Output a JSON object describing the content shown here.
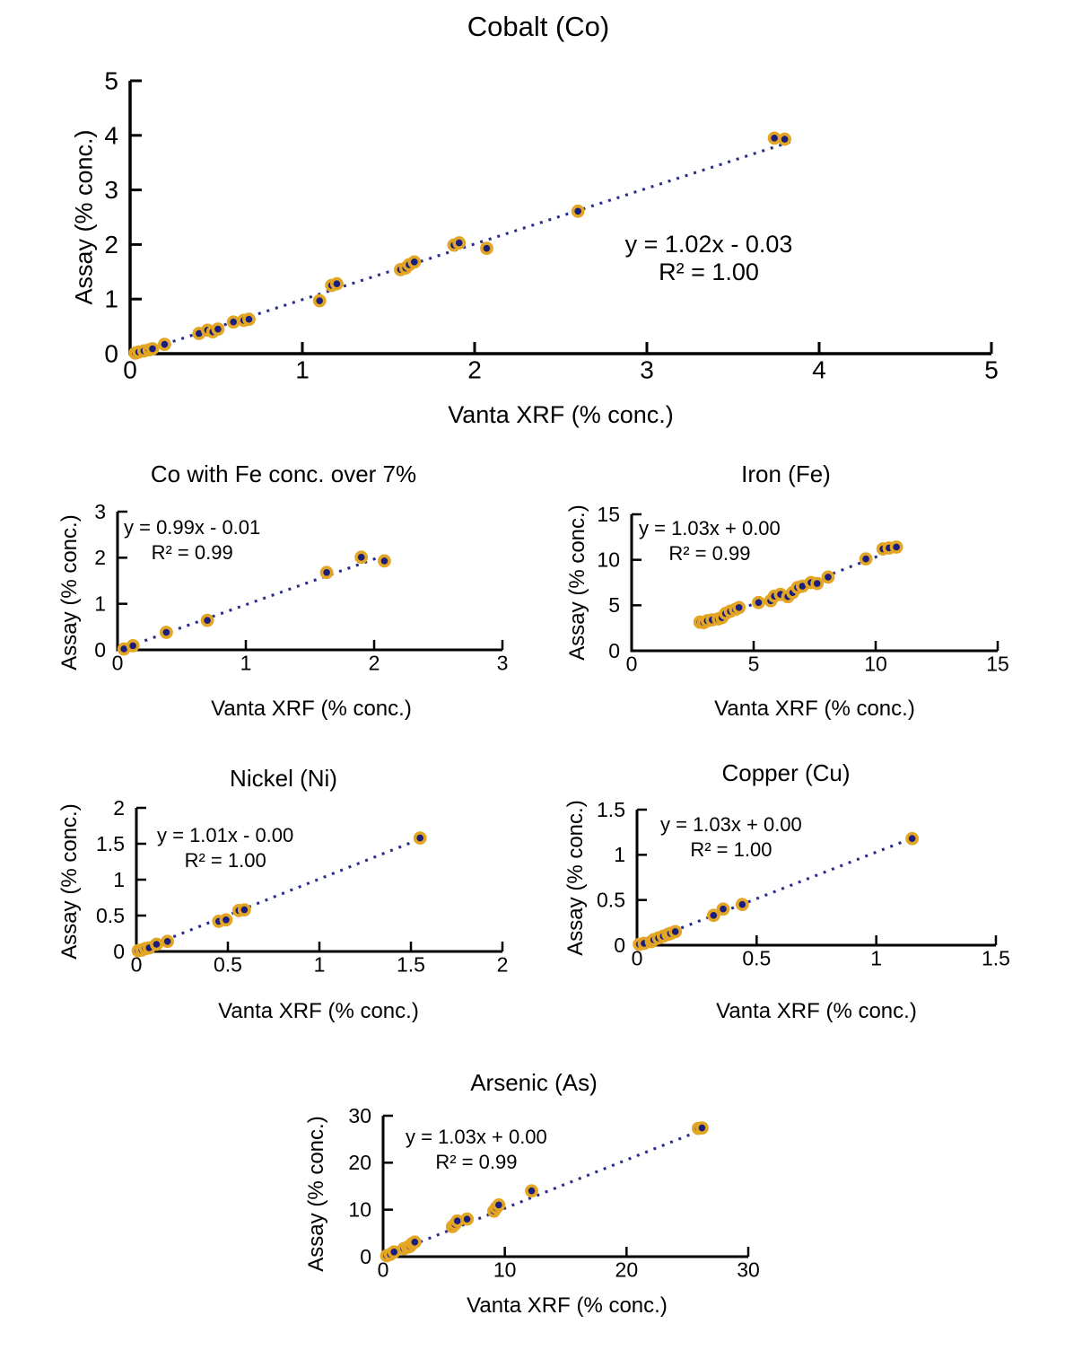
{
  "figure_background": "#ffffff",
  "colors": {
    "marker_fill": "#1b1e7c",
    "marker_ring": "#e2a524",
    "trendline": "#2b2d8c",
    "axis": "#000000",
    "text": "#000000"
  },
  "chart_data": [
    {
      "type": "scatter",
      "title": "Cobalt (Co)",
      "equation": "y = 1.02x - 0.03",
      "r_squared": "R² = 1.00",
      "x_label": "Vanta XRF (% conc.)",
      "y_label": "Assay (% conc.)",
      "x_ticks": [
        "0",
        "1",
        "2",
        "3",
        "4",
        "5"
      ],
      "y_ticks": [
        "0",
        "1",
        "2",
        "3",
        "4",
        "5"
      ],
      "x_max": 5,
      "y_max": 5,
      "fit": {
        "m": 1.02,
        "b": -0.03
      },
      "trend_x": [
        0.05,
        3.86
      ],
      "points": [
        [
          0.03,
          0.01
        ],
        [
          0.05,
          0.03
        ],
        [
          0.08,
          0.05
        ],
        [
          0.11,
          0.07
        ],
        [
          0.13,
          0.09
        ],
        [
          0.2,
          0.17
        ],
        [
          0.4,
          0.37
        ],
        [
          0.45,
          0.43
        ],
        [
          0.48,
          0.4
        ],
        [
          0.51,
          0.45
        ],
        [
          0.6,
          0.58
        ],
        [
          0.66,
          0.61
        ],
        [
          0.69,
          0.63
        ],
        [
          1.1,
          0.97
        ],
        [
          1.17,
          1.25
        ],
        [
          1.2,
          1.28
        ],
        [
          1.57,
          1.54
        ],
        [
          1.6,
          1.57
        ],
        [
          1.62,
          1.63
        ],
        [
          1.65,
          1.68
        ],
        [
          1.88,
          1.99
        ],
        [
          1.91,
          2.03
        ],
        [
          2.07,
          1.93
        ],
        [
          2.6,
          2.61
        ],
        [
          3.74,
          3.95
        ],
        [
          3.8,
          3.93
        ]
      ]
    },
    {
      "type": "scatter",
      "title": "Co with Fe conc. over 7%",
      "equation": "y = 0.99x - 0.01",
      "r_squared": "R² = 0.99",
      "x_label": "Vanta XRF (% conc.)",
      "y_label": "Assay (% conc.)",
      "x_ticks": [
        "0",
        "1",
        "2",
        "3"
      ],
      "y_ticks": [
        "0",
        "1",
        "2",
        "3"
      ],
      "x_max": 3,
      "y_max": 3,
      "fit": {
        "m": 0.99,
        "b": -0.01
      },
      "trend_x": [
        0.08,
        2.12
      ],
      "points": [
        [
          0.05,
          0.02
        ],
        [
          0.12,
          0.09
        ],
        [
          0.38,
          0.38
        ],
        [
          0.7,
          0.64
        ],
        [
          1.63,
          1.68
        ],
        [
          1.9,
          2.01
        ],
        [
          2.08,
          1.93
        ]
      ]
    },
    {
      "type": "scatter",
      "title": "Iron (Fe)",
      "equation": "y = 1.03x + 0.00",
      "r_squared": "R² = 0.99",
      "x_label": "Vanta XRF (% conc.)",
      "y_label": "Assay (% conc.)",
      "x_ticks": [
        "0",
        "5",
        "10",
        "15"
      ],
      "y_ticks": [
        "0",
        "5",
        "10",
        "15"
      ],
      "x_max": 15,
      "y_max": 15,
      "fit": {
        "m": 1.03,
        "b": 0.0
      },
      "trend_x": [
        2.75,
        11.0
      ],
      "points": [
        [
          2.8,
          3.15
        ],
        [
          2.95,
          3.1
        ],
        [
          3.1,
          3.3
        ],
        [
          3.3,
          3.4
        ],
        [
          3.55,
          3.5
        ],
        [
          3.7,
          3.65
        ],
        [
          3.85,
          4.1
        ],
        [
          4.05,
          4.35
        ],
        [
          4.25,
          4.55
        ],
        [
          4.4,
          4.75
        ],
        [
          5.2,
          5.3
        ],
        [
          5.7,
          5.5
        ],
        [
          5.85,
          6.0
        ],
        [
          6.1,
          6.2
        ],
        [
          6.4,
          5.95
        ],
        [
          6.6,
          6.4
        ],
        [
          6.8,
          6.95
        ],
        [
          7.0,
          7.1
        ],
        [
          7.35,
          7.5
        ],
        [
          7.6,
          7.4
        ],
        [
          8.05,
          8.1
        ],
        [
          9.6,
          10.1
        ],
        [
          10.3,
          11.2
        ],
        [
          10.55,
          11.3
        ],
        [
          10.85,
          11.4
        ]
      ]
    },
    {
      "type": "scatter",
      "title": "Nickel (Ni)",
      "equation": "y = 1.01x - 0.00",
      "r_squared": "R² = 1.00",
      "x_label": "Vanta XRF (% conc.)",
      "y_label": "Assay (% conc.)",
      "x_ticks": [
        "0",
        "0.5",
        "1",
        "1.5",
        "2"
      ],
      "y_ticks": [
        "0",
        "0.5",
        "1",
        "1.5",
        "2"
      ],
      "x_max": 2,
      "y_max": 2,
      "fit": {
        "m": 1.01,
        "b": 0.0
      },
      "trend_x": [
        0.02,
        1.57
      ],
      "points": [
        [
          0.01,
          0.01
        ],
        [
          0.03,
          0.02
        ],
        [
          0.05,
          0.04
        ],
        [
          0.07,
          0.05
        ],
        [
          0.11,
          0.1
        ],
        [
          0.17,
          0.14
        ],
        [
          0.45,
          0.42
        ],
        [
          0.49,
          0.44
        ],
        [
          0.56,
          0.57
        ],
        [
          0.59,
          0.58
        ],
        [
          1.55,
          1.58
        ]
      ]
    },
    {
      "type": "scatter",
      "title": "Copper (Cu)",
      "equation": "y = 1.03x + 0.00",
      "r_squared": "R² = 1.00",
      "x_label": "Vanta XRF (% conc.)",
      "y_label": "Assay (% conc.)",
      "x_ticks": [
        "0",
        "0.5",
        "1",
        "1.5"
      ],
      "y_ticks": [
        "0",
        "0.5",
        "1",
        "1.5"
      ],
      "x_max": 1.5,
      "y_max": 1.5,
      "fit": {
        "m": 1.03,
        "b": 0.0
      },
      "trend_x": [
        0.01,
        1.17
      ],
      "points": [
        [
          0.01,
          0.01
        ],
        [
          0.03,
          0.02
        ],
        [
          0.06,
          0.04
        ],
        [
          0.07,
          0.06
        ],
        [
          0.09,
          0.08
        ],
        [
          0.11,
          0.1
        ],
        [
          0.13,
          0.12
        ],
        [
          0.14,
          0.13
        ],
        [
          0.16,
          0.15
        ],
        [
          0.32,
          0.33
        ],
        [
          0.36,
          0.4
        ],
        [
          0.44,
          0.45
        ],
        [
          1.15,
          1.18
        ]
      ]
    },
    {
      "type": "scatter",
      "title": "Arsenic (As)",
      "equation": "y = 1.03x + 0.00",
      "r_squared": "R² = 0.99",
      "x_label": "Vanta XRF (% conc.)",
      "y_label": "Assay (% conc.)",
      "x_ticks": [
        "0",
        "10",
        "20",
        "30"
      ],
      "y_ticks": [
        "0",
        "10",
        "20",
        "30"
      ],
      "x_max": 30,
      "y_max": 30,
      "fit": {
        "m": 1.03,
        "b": 0.0
      },
      "trend_x": [
        0.3,
        27.0
      ],
      "points": [
        [
          0.3,
          0.2
        ],
        [
          0.6,
          0.5
        ],
        [
          0.9,
          1.0
        ],
        [
          1.7,
          1.7
        ],
        [
          2.0,
          2.0
        ],
        [
          2.2,
          2.2
        ],
        [
          2.4,
          2.8
        ],
        [
          2.6,
          3.1
        ],
        [
          5.7,
          6.4
        ],
        [
          5.9,
          6.9
        ],
        [
          6.1,
          7.6
        ],
        [
          6.9,
          8.0
        ],
        [
          9.1,
          9.7
        ],
        [
          9.3,
          10.4
        ],
        [
          9.5,
          11.0
        ],
        [
          12.2,
          14.0
        ],
        [
          25.9,
          27.3
        ],
        [
          26.2,
          27.4
        ]
      ]
    }
  ]
}
